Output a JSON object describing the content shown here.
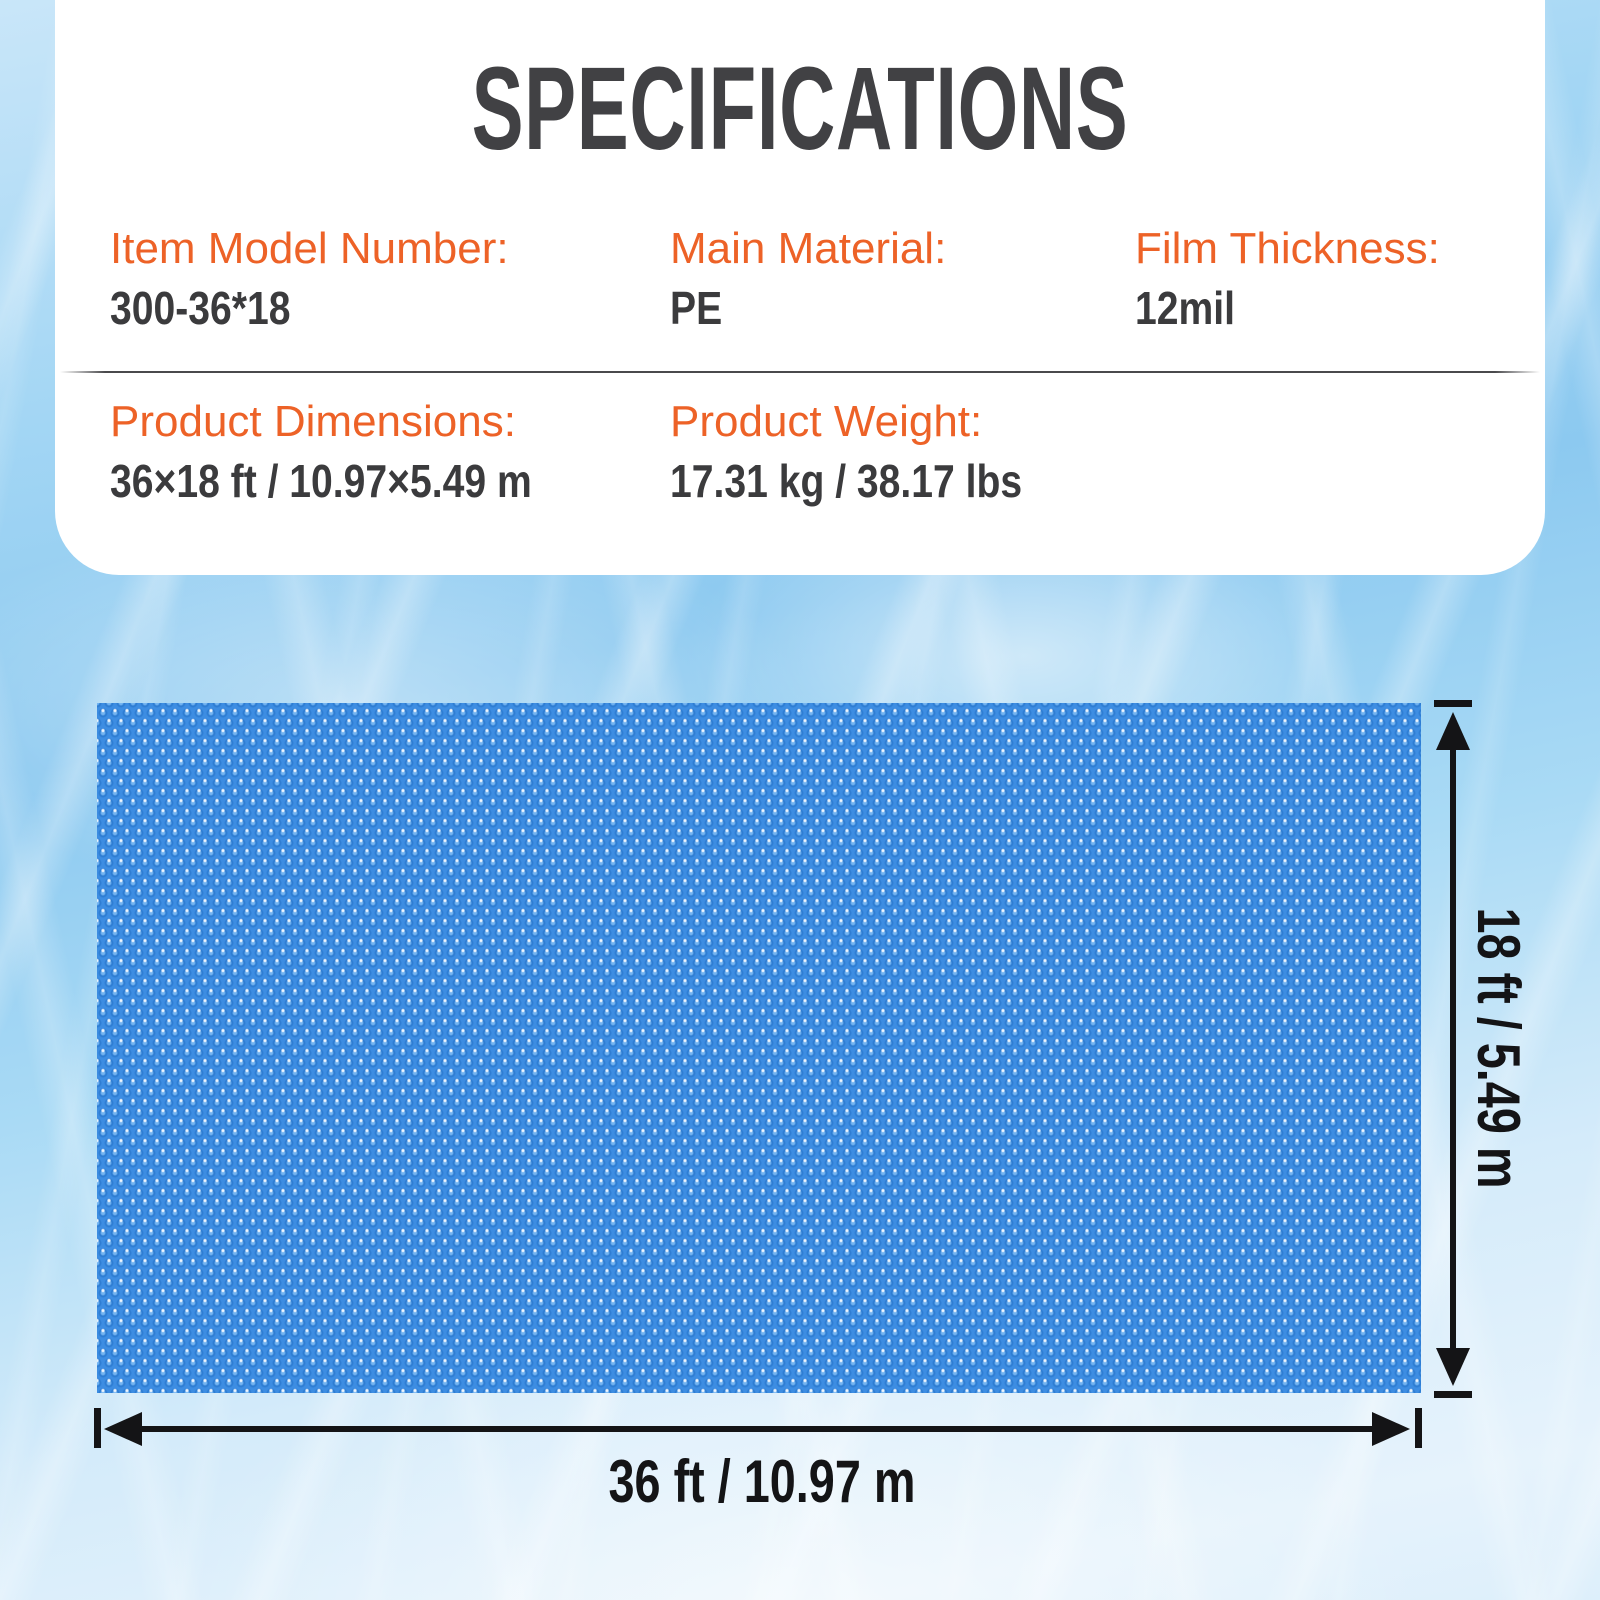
{
  "title": "SPECIFICATIONS",
  "specs": {
    "row1": [
      {
        "label": "Item Model Number:",
        "value": "300-36*18"
      },
      {
        "label": "Main Material:",
        "value": "PE"
      },
      {
        "label": "Film Thickness:",
        "value": "12mil"
      }
    ],
    "row2": [
      {
        "label": "Product Dimensions:",
        "value": "36×18 ft / 10.97×5.49 m"
      },
      {
        "label": "Product Weight:",
        "value": "17.31 kg / 38.17 lbs"
      }
    ]
  },
  "diagram": {
    "height_label": "18 ft / 5.49 m",
    "width_label": "36 ft / 10.97 m"
  },
  "colors": {
    "accent_orange": "#ED6227",
    "value_gray": "#3B3B3D",
    "title_gray": "#414144",
    "cover_blue": "#3D8DE2",
    "bubble_dark_blue": "#2D7CD2",
    "dimension_black": "#141416",
    "water_blue": "#8CC9F0"
  }
}
